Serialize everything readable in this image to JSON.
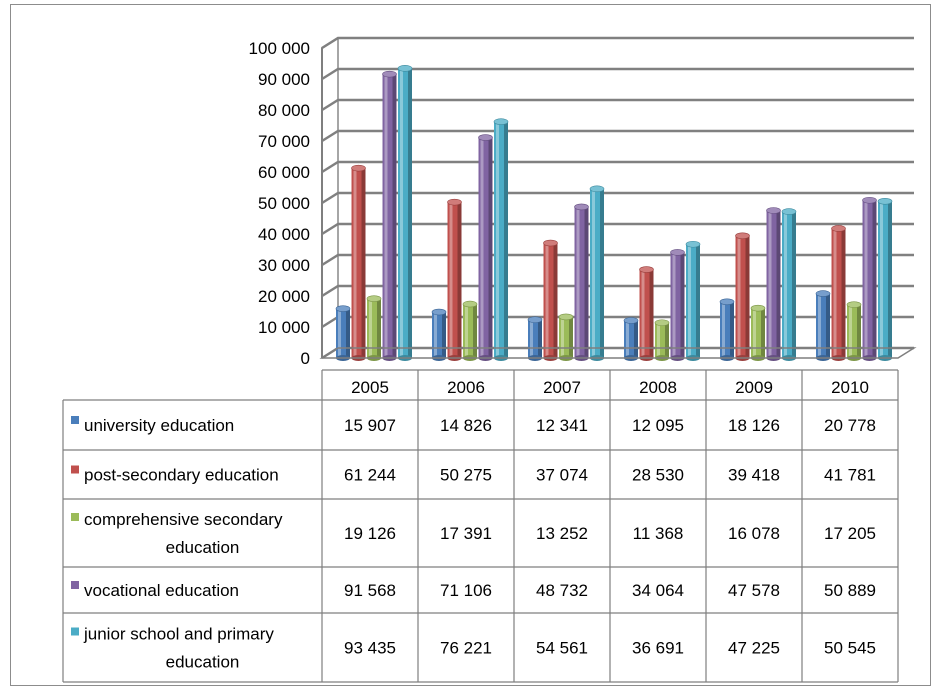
{
  "chart_data": {
    "type": "bar",
    "title": "",
    "xlabel": "",
    "ylabel": "",
    "ylim": [
      0,
      100000
    ],
    "yticks": [
      0,
      10000,
      20000,
      30000,
      40000,
      50000,
      60000,
      70000,
      80000,
      90000,
      100000
    ],
    "ytick_labels": [
      "0",
      "10 000",
      "20 000",
      "30 000",
      "40 000",
      "50 000",
      "60 000",
      "70 000",
      "80 000",
      "90 000",
      "100 000"
    ],
    "grid": true,
    "legend": "data-table",
    "categories": [
      "2005",
      "2006",
      "2007",
      "2008",
      "2009",
      "2010"
    ],
    "series": [
      {
        "name": "university education",
        "color": "#4a7ebb",
        "values": [
          15907,
          14826,
          12341,
          12095,
          18126,
          20778
        ],
        "labels": [
          "15 907",
          "14 826",
          "12 341",
          "12 095",
          "18 126",
          "20 778"
        ]
      },
      {
        "name": "post-secondary education",
        "color": "#c0504d",
        "values": [
          61244,
          50275,
          37074,
          28530,
          39418,
          41781
        ],
        "labels": [
          "61 244",
          "50 275",
          "37 074",
          "28 530",
          "39 418",
          "41 781"
        ]
      },
      {
        "name": "comprehensive secondary education",
        "name_lines": [
          "comprehensive secondary",
          "education"
        ],
        "color": "#9bbb59",
        "values": [
          19126,
          17391,
          13252,
          11368,
          16078,
          17205
        ],
        "labels": [
          "19 126",
          "17 391",
          "13 252",
          "11 368",
          "16 078",
          "17 205"
        ]
      },
      {
        "name": "vocational education",
        "color": "#8064a2",
        "values": [
          91568,
          71106,
          48732,
          34064,
          47578,
          50889
        ],
        "labels": [
          "91 568",
          "71 106",
          "48 732",
          "34 064",
          "47 578",
          "50 889"
        ]
      },
      {
        "name": "junior school and primary education",
        "name_lines": [
          "junior school and primary",
          "education"
        ],
        "color": "#4bacc6",
        "values": [
          93435,
          76221,
          54561,
          36691,
          47225,
          50545
        ],
        "labels": [
          "93 435",
          "76 221",
          "54 561",
          "36 691",
          "47 225",
          "50 545"
        ]
      }
    ]
  }
}
